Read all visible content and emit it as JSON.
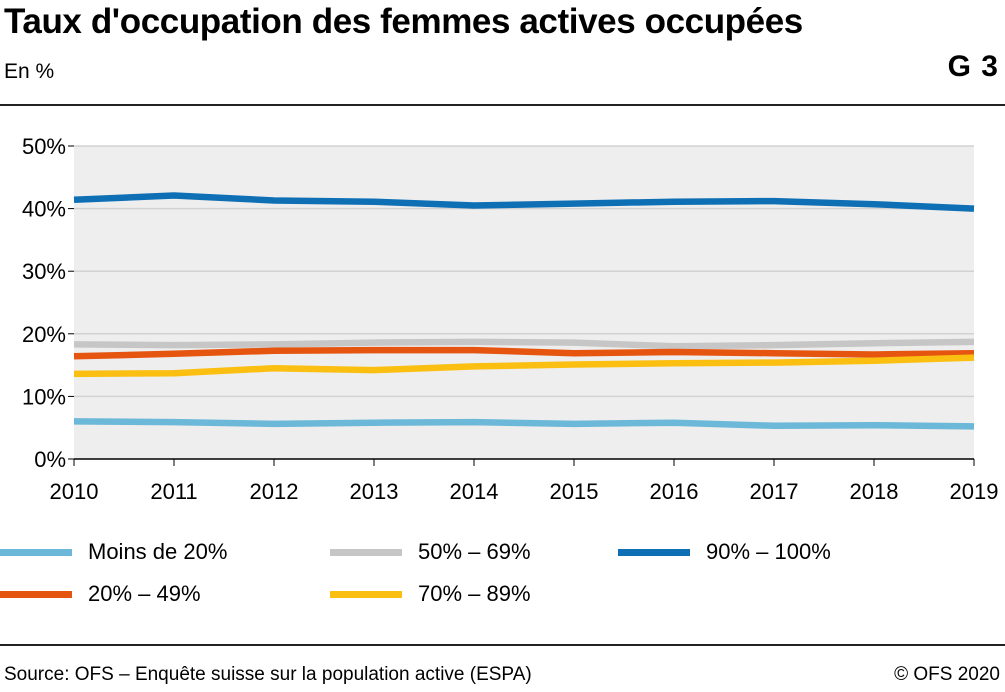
{
  "header": {
    "title": "Taux d'occupation des femmes actives occupées",
    "subtitle": "En %",
    "figure_number": "G 3"
  },
  "footer": {
    "source": "Source: OFS – Enquête suisse sur la population active (ESPA)",
    "copyright": "© OFS 2020"
  },
  "colors": {
    "plot_background": "#eeeeee",
    "gridline": "#d2d2d2",
    "axis": "#000000"
  },
  "chart_data": {
    "type": "line",
    "title": "Taux d'occupation des femmes actives occupées",
    "subtitle": "En %",
    "x": [
      "2010",
      "2011",
      "2012",
      "2013",
      "2014",
      "2015",
      "2016",
      "2017",
      "2018",
      "2019"
    ],
    "ylim": [
      0,
      50
    ],
    "yticks": [
      0,
      10,
      20,
      30,
      40,
      50
    ],
    "ytick_labels": [
      "0%",
      "10%",
      "20%",
      "30%",
      "40%",
      "50%"
    ],
    "grid": true,
    "legend_position": "bottom",
    "series": [
      {
        "name": "Moins de 20%",
        "color": "#6cb8d8",
        "values": [
          6.0,
          5.9,
          5.6,
          5.8,
          5.9,
          5.6,
          5.8,
          5.3,
          5.4,
          5.2
        ]
      },
      {
        "name": "50% – 69%",
        "color": "#c6c6c6",
        "values": [
          18.3,
          18.2,
          18.3,
          18.6,
          18.7,
          18.6,
          18.0,
          18.2,
          18.5,
          18.7
        ]
      },
      {
        "name": "90% – 100%",
        "color": "#0f6fb5",
        "values": [
          41.4,
          42.1,
          41.3,
          41.1,
          40.5,
          40.8,
          41.1,
          41.2,
          40.7,
          40.0
        ]
      },
      {
        "name": "20% – 49%",
        "color": "#e5550f",
        "values": [
          16.4,
          16.8,
          17.3,
          17.4,
          17.4,
          16.9,
          17.1,
          16.9,
          16.7,
          16.9
        ]
      },
      {
        "name": "70% – 89%",
        "color": "#fbbf12",
        "values": [
          13.6,
          13.7,
          14.5,
          14.2,
          14.8,
          15.1,
          15.3,
          15.4,
          15.7,
          16.2
        ]
      }
    ]
  }
}
